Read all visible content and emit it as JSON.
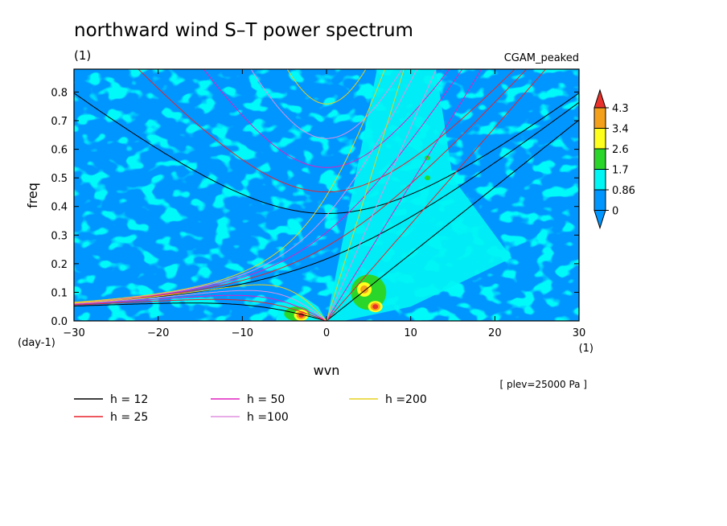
{
  "chart_data": {
    "type": "heatmap",
    "title": "northward wind S–T power spectrum",
    "subtitle_left": "(1)",
    "subtitle_right": "CGAM_peaked",
    "xlabel": "wvn",
    "ylabel": "freq",
    "x_unit": "(1)",
    "y_unit": "(day-1)",
    "plev_note": "[ plev=25000 Pa ]",
    "xlim": [
      -30,
      30
    ],
    "ylim": [
      0,
      0.88
    ],
    "x_ticks": [
      {
        "value": -30,
        "label": "−30"
      },
      {
        "value": -20,
        "label": "−20"
      },
      {
        "value": -10,
        "label": "−10"
      },
      {
        "value": 0,
        "label": "0"
      },
      {
        "value": 10,
        "label": "10"
      },
      {
        "value": 20,
        "label": "20"
      },
      {
        "value": 30,
        "label": "30"
      }
    ],
    "y_ticks": [
      {
        "value": 0.0,
        "label": "0.0"
      },
      {
        "value": 0.1,
        "label": "0.1"
      },
      {
        "value": 0.2,
        "label": "0.2"
      },
      {
        "value": 0.3,
        "label": "0.3"
      },
      {
        "value": 0.4,
        "label": "0.4"
      },
      {
        "value": 0.5,
        "label": "0.5"
      },
      {
        "value": 0.6,
        "label": "0.6"
      },
      {
        "value": 0.7,
        "label": "0.7"
      },
      {
        "value": 0.8,
        "label": "0.8"
      }
    ],
    "colorbar": {
      "labels": [
        "4.3",
        "3.4",
        "2.6",
        "1.7",
        "0.86",
        "0"
      ],
      "colors": [
        "#e8322b",
        "#f5a01a",
        "#ffff1e",
        "#2bd62b",
        "#00f5f5",
        "#0096ff"
      ]
    },
    "dispersion_curves": [
      {
        "name": "h = 12",
        "h": 12,
        "color": "#000000"
      },
      {
        "name": "h = 25",
        "h": 25,
        "color": "#e8222b"
      },
      {
        "name": "h = 50",
        "h": 50,
        "color": "#e020c0"
      },
      {
        "name": "h =100",
        "h": 100,
        "color": "#e090e0"
      },
      {
        "name": "h =200",
        "h": 200,
        "color": "#e6d020"
      }
    ],
    "hotspots": [
      {
        "x": -3,
        "y": 0.02,
        "level": "4.3"
      },
      {
        "x": 4.5,
        "y": 0.11,
        "level": "3.4"
      },
      {
        "x": 5.8,
        "y": 0.05,
        "level": "4.3"
      },
      {
        "x": 12,
        "y": 0.5,
        "level": "1.7"
      },
      {
        "x": 12,
        "y": 0.57,
        "level": "1.7"
      }
    ]
  }
}
